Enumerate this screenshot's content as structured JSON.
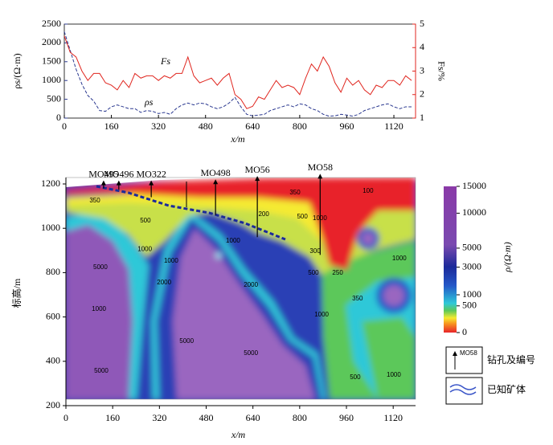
{
  "chart_data": [
    {
      "type": "line",
      "x": [
        0,
        20,
        40,
        60,
        80,
        100,
        120,
        140,
        160,
        180,
        200,
        220,
        240,
        260,
        280,
        300,
        320,
        340,
        360,
        380,
        400,
        420,
        440,
        460,
        480,
        500,
        520,
        540,
        560,
        580,
        600,
        620,
        640,
        660,
        680,
        700,
        720,
        740,
        760,
        780,
        800,
        820,
        840,
        860,
        880,
        900,
        920,
        940,
        960,
        980,
        1000,
        1020,
        1040,
        1060,
        1080,
        1100,
        1120,
        1140,
        1160,
        1180
      ],
      "series": [
        {
          "name": "ρs",
          "color": "#2b3990",
          "axis": "y",
          "values": [
            2300,
            1800,
            1300,
            900,
            600,
            450,
            200,
            180,
            300,
            350,
            300,
            250,
            250,
            150,
            200,
            180,
            120,
            150,
            100,
            250,
            350,
            400,
            350,
            400,
            380,
            300,
            250,
            300,
            400,
            550,
            300,
            100,
            60,
            80,
            100,
            200,
            250,
            300,
            350,
            300,
            380,
            350,
            250,
            200,
            100,
            50,
            60,
            100,
            80,
            50,
            100,
            200,
            250,
            300,
            350,
            380,
            300,
            250,
            300,
            300
          ]
        },
        {
          "name": "Fs",
          "color": "#e0261f",
          "axis": "y2",
          "values": [
            4.5,
            3.8,
            3.6,
            3.0,
            2.6,
            2.9,
            2.9,
            2.5,
            2.4,
            2.2,
            2.6,
            2.3,
            2.9,
            2.7,
            2.8,
            2.8,
            2.6,
            2.8,
            2.7,
            2.9,
            2.9,
            3.6,
            2.8,
            2.5,
            2.6,
            2.7,
            2.4,
            2.7,
            2.9,
            2.0,
            1.8,
            1.4,
            1.5,
            1.9,
            1.8,
            2.2,
            2.6,
            2.3,
            2.4,
            2.3,
            2.0,
            2.7,
            3.3,
            3.0,
            3.6,
            3.2,
            2.5,
            2.1,
            2.7,
            2.4,
            2.6,
            2.2,
            2.0,
            2.4,
            2.3,
            2.6,
            2.6,
            2.4,
            2.8,
            2.6
          ]
        }
      ],
      "xlim": [
        0,
        1180
      ],
      "xticks": [
        0,
        160,
        320,
        480,
        640,
        800,
        960,
        1120
      ],
      "ylim": [
        0,
        2500
      ],
      "yticks": [
        0,
        500,
        1000,
        1500,
        2000,
        2500
      ],
      "y2lim": [
        1,
        5
      ],
      "y2ticks": [
        1,
        2,
        3,
        4,
        5
      ],
      "x_label": "x/m",
      "y_label": "ρs/(Ω·m)",
      "y2_label": "Fs/%"
    },
    {
      "type": "section",
      "xlim": [
        0,
        1180
      ],
      "xticks": [
        0,
        160,
        320,
        480,
        640,
        800,
        960,
        1120
      ],
      "ylim": [
        200,
        1230
      ],
      "yticks": [
        200,
        400,
        600,
        800,
        1000,
        1200
      ],
      "x_label": "x/m",
      "y_label": "标高/m",
      "boreholes": [
        {
          "name": "MO495",
          "x": 129,
          "top": 1205,
          "bottom": 1180
        },
        {
          "name": "MO496",
          "x": 181,
          "top": 1205,
          "bottom": 1175
        },
        {
          "name": "MO322",
          "x": 292,
          "top": 1205,
          "bottom": 1140
        },
        {
          "name": "MO498",
          "x": 512,
          "top": 1210,
          "bottom": 1060
        },
        {
          "name": "MO56",
          "x": 655,
          "top": 1225,
          "bottom": 960
        },
        {
          "name": "MO58",
          "x": 870,
          "top": 1235,
          "bottom": 880
        }
      ],
      "contour_labels": [
        {
          "value": 350,
          "x": 99,
          "y": 1124
        },
        {
          "value": 500,
          "x": 272,
          "y": 1033
        },
        {
          "value": 1000,
          "x": 270,
          "y": 906
        },
        {
          "value": 5000,
          "x": 118,
          "y": 823
        },
        {
          "value": 1000,
          "x": 113,
          "y": 635
        },
        {
          "value": 5000,
          "x": 121,
          "y": 356
        },
        {
          "value": 1000,
          "x": 360,
          "y": 852
        },
        {
          "value": 2000,
          "x": 336,
          "y": 754
        },
        {
          "value": 5000,
          "x": 413,
          "y": 490
        },
        {
          "value": 5000,
          "x": 633,
          "y": 435
        },
        {
          "value": 1000,
          "x": 572,
          "y": 943
        },
        {
          "value": 2000,
          "x": 633,
          "y": 743
        },
        {
          "value": 350,
          "x": 784,
          "y": 1160
        },
        {
          "value": 200,
          "x": 677,
          "y": 1062
        },
        {
          "value": 500,
          "x": 809,
          "y": 1051
        },
        {
          "value": 1000,
          "x": 869,
          "y": 1044
        },
        {
          "value": 300,
          "x": 853,
          "y": 896
        },
        {
          "value": 500,
          "x": 847,
          "y": 798
        },
        {
          "value": 250,
          "x": 930,
          "y": 798
        },
        {
          "value": 1000,
          "x": 875,
          "y": 609
        },
        {
          "value": 350,
          "x": 998,
          "y": 682
        },
        {
          "value": 1000,
          "x": 1141,
          "y": 863
        },
        {
          "value": 500,
          "x": 990,
          "y": 327
        },
        {
          "value": 1000,
          "x": 1122,
          "y": 338
        },
        {
          "value": 100,
          "x": 1034,
          "y": 1167
        }
      ],
      "colorbar": {
        "title": "ρ/(Ω·m)",
        "ticks": [
          0,
          500,
          1000,
          3000,
          5000,
          10000,
          15000
        ],
        "lim": [
          0,
          15000
        ]
      },
      "legend": {
        "borehole_icon": "MO58",
        "borehole": "钻孔及编号",
        "ore": "已知矿体"
      }
    }
  ]
}
